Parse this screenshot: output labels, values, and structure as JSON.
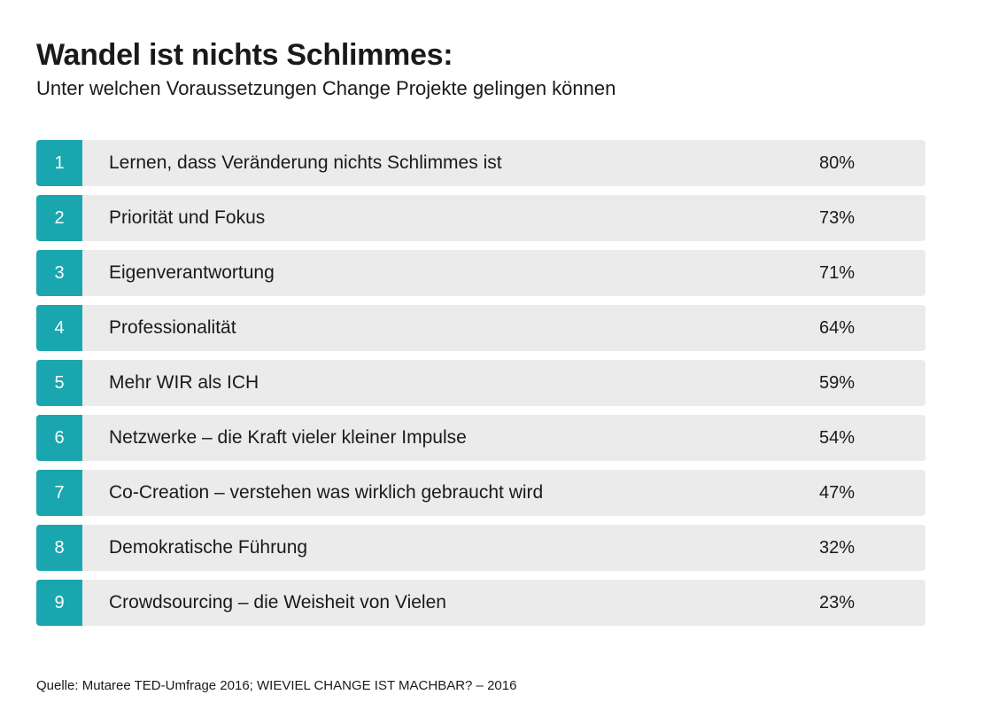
{
  "title": "Wandel ist nichts Schlimmes:",
  "subtitle": "Unter welchen Voraussetzungen Change Projekte gelingen können",
  "source": "Quelle: Mutaree TED-Umfrage 2016; WIEVIEL CHANGE IST MACHBAR? – 2016",
  "colors": {
    "accent": "#1aa6ae",
    "row_background": "#ebebeb",
    "text": "#1a1a1a"
  },
  "chart_data": {
    "type": "table",
    "title": "Wandel ist nichts Schlimmes:",
    "subtitle": "Unter welchen Voraussetzungen Change Projekte gelingen können",
    "rows": [
      {
        "rank": "1",
        "label": "Lernen, dass Veränderung nichts Schlimmes ist",
        "value": 80,
        "value_label": "80%"
      },
      {
        "rank": "2",
        "label": "Priorität und Fokus",
        "value": 73,
        "value_label": "73%"
      },
      {
        "rank": "3",
        "label": "Eigenverantwortung",
        "value": 71,
        "value_label": "71%"
      },
      {
        "rank": "4",
        "label": "Professionalität",
        "value": 64,
        "value_label": "64%"
      },
      {
        "rank": "5",
        "label": "Mehr WIR als ICH",
        "value": 59,
        "value_label": "59%"
      },
      {
        "rank": "6",
        "label": "Netzwerke – die Kraft vieler kleiner Impulse",
        "value": 54,
        "value_label": "54%"
      },
      {
        "rank": "7",
        "label": "Co-Creation – verstehen was wirklich gebraucht wird",
        "value": 47,
        "value_label": "47%"
      },
      {
        "rank": "8",
        "label": "Demokratische Führung",
        "value": 32,
        "value_label": "32%"
      },
      {
        "rank": "9",
        "label": "Crowdsourcing – die Weisheit von Vielen",
        "value": 23,
        "value_label": "23%"
      }
    ]
  }
}
